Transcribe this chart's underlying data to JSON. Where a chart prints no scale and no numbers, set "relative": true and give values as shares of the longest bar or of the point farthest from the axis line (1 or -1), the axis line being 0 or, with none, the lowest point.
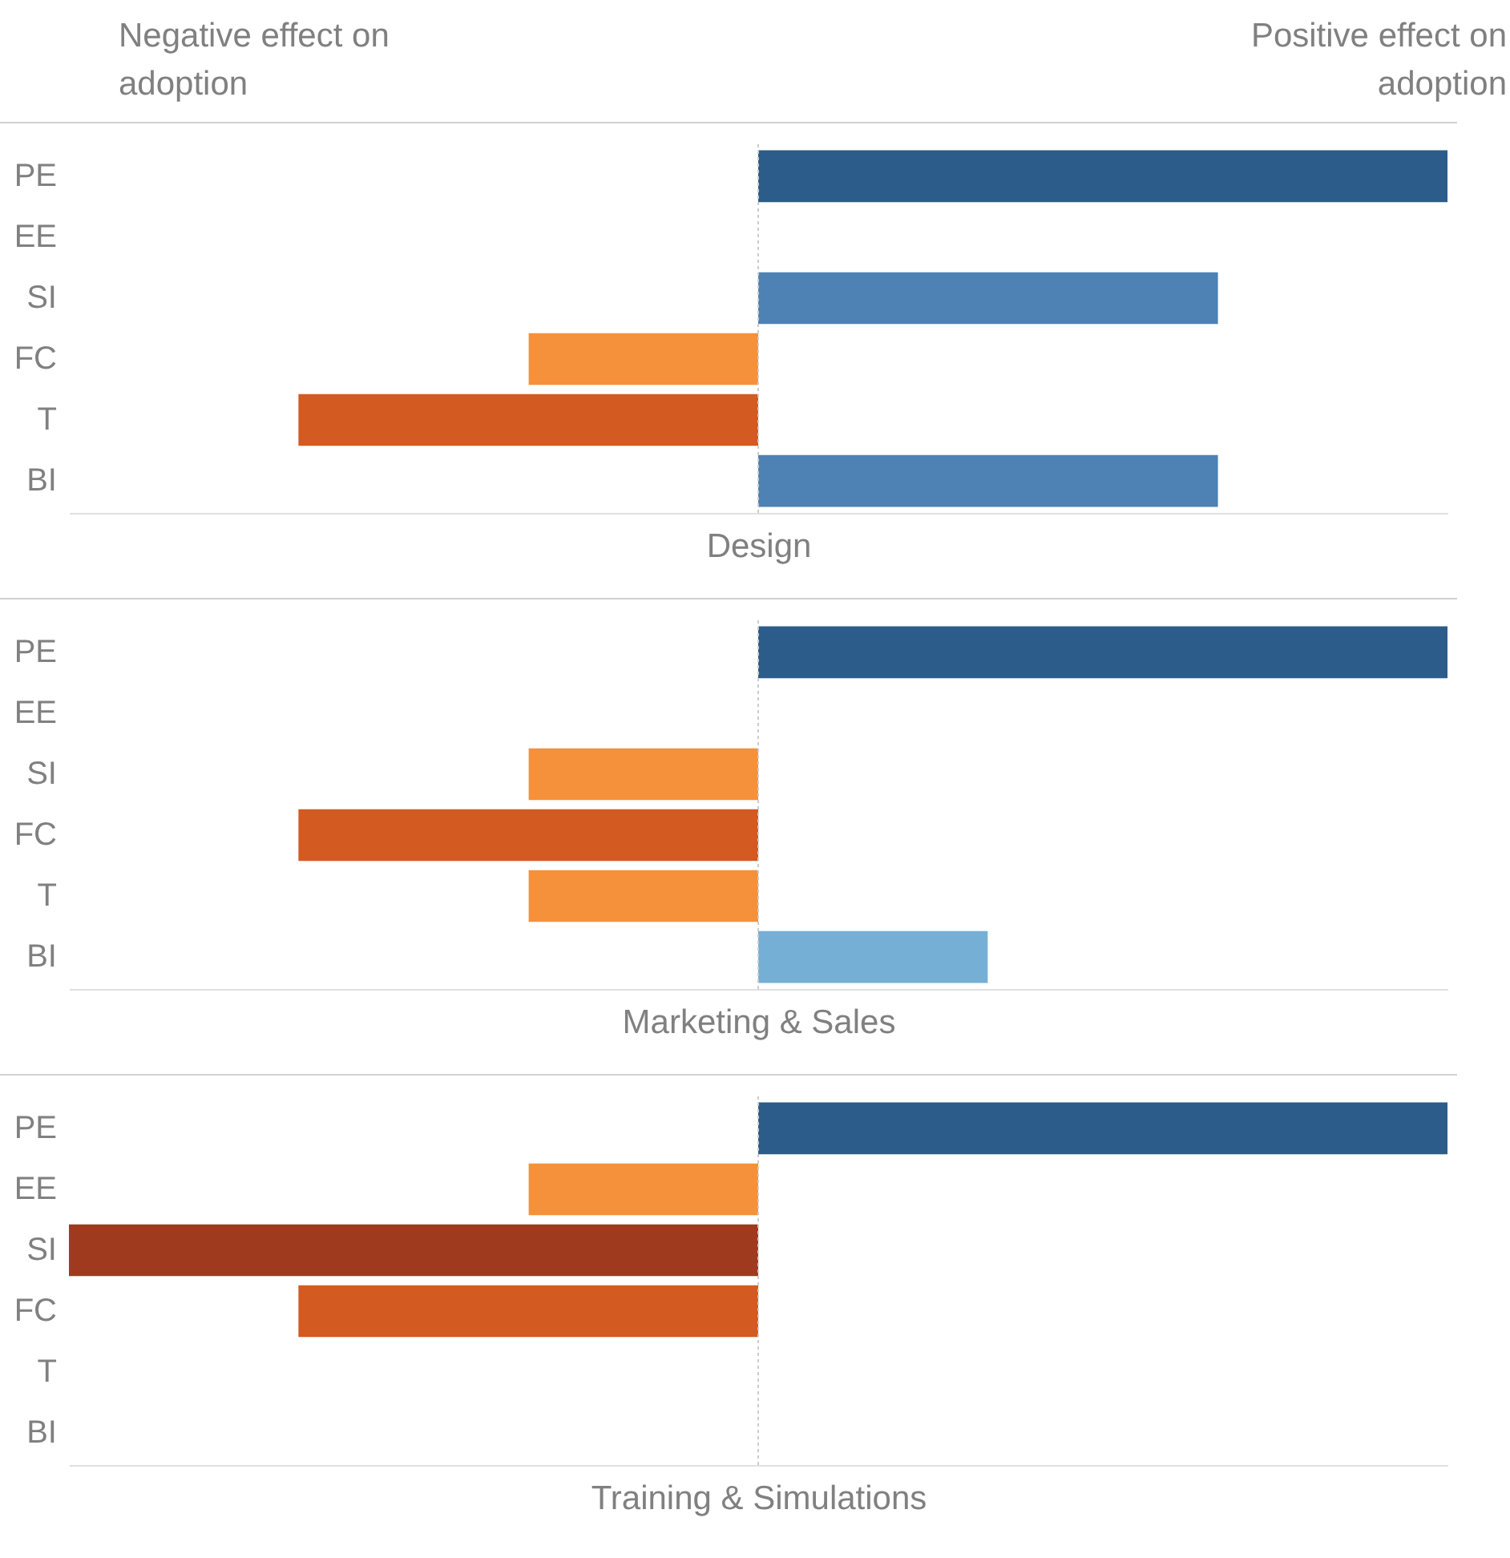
{
  "chart_data": [
    {
      "type": "bar",
      "orientation": "horizontal",
      "relative": true,
      "tick_labels": "y",
      "grid": false,
      "xlabel": "Design",
      "annotations": [
        "Negative effect on adoption",
        "Positive effect on adoption"
      ],
      "categories": [
        "PE",
        "EE",
        "SI",
        "FC",
        "T",
        "BI"
      ],
      "values": [
        1,
        null,
        0.667,
        -0.333,
        -0.667,
        0.667
      ],
      "colors": [
        "#2b5c8a",
        null,
        "#4e81b4",
        "#f5913a",
        "#d35a21",
        "#4e81b4"
      ],
      "ref_lines": [
        {
          "axis": "x",
          "value": 0,
          "color": "#cccccc",
          "line_style": "dotted"
        }
      ]
    },
    {
      "type": "bar",
      "orientation": "horizontal",
      "relative": true,
      "tick_labels": "y",
      "grid": false,
      "xlabel": "Marketing & Sales",
      "categories": [
        "PE",
        "EE",
        "SI",
        "FC",
        "T",
        "BI"
      ],
      "values": [
        1,
        null,
        -0.333,
        -0.667,
        -0.333,
        0.333
      ],
      "colors": [
        "#2b5c8a",
        null,
        "#f5913a",
        "#d35a21",
        "#f5913a",
        "#76afd5"
      ],
      "ref_lines": [
        {
          "axis": "x",
          "value": 0,
          "color": "#cccccc",
          "line_style": "dotted"
        }
      ]
    },
    {
      "type": "bar",
      "orientation": "horizontal",
      "relative": true,
      "tick_labels": "y",
      "grid": false,
      "xlabel": "Training & Simulations",
      "categories": [
        "PE",
        "EE",
        "SI",
        "FC",
        "T",
        "BI"
      ],
      "values": [
        1,
        -0.333,
        -1,
        -0.667,
        null,
        null
      ],
      "colors": [
        "#2b5c8a",
        "#f5913a",
        "#a03a1f",
        "#d35a21",
        null,
        null
      ],
      "ref_lines": [
        {
          "axis": "x",
          "value": 0,
          "color": "#cccccc",
          "line_style": "dotted"
        }
      ]
    }
  ]
}
